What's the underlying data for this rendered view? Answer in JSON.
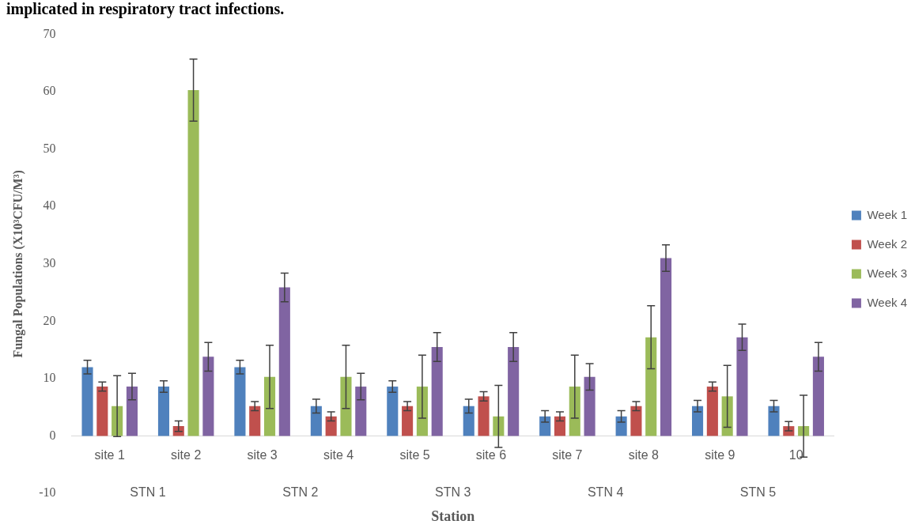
{
  "chart_data": {
    "type": "bar",
    "xlabel": "Station",
    "ylabel": "Fungal Populations (X10³CFU/M³)",
    "categories": [
      "site 1",
      "site 2",
      "site 3",
      "site 4",
      "site 5",
      "site 6",
      "site 7",
      "site 8",
      "site 9",
      "10"
    ],
    "series": [
      {
        "name": "Week 1",
        "color": "#4f81bd",
        "values": [
          12,
          8.6,
          12,
          5.2,
          8.6,
          5.2,
          3.4,
          3.4,
          5.2,
          5.2
        ],
        "errors": [
          1.2,
          1,
          1.2,
          1.2,
          1,
          1.2,
          1,
          1,
          1,
          1
        ]
      },
      {
        "name": "Week 2",
        "color": "#c0504d",
        "values": [
          8.6,
          1.7,
          5.2,
          3.4,
          5.2,
          6.9,
          3.4,
          5.2,
          8.6,
          1.7
        ],
        "errors": [
          0.8,
          0.9,
          0.8,
          0.8,
          0.8,
          0.8,
          0.8,
          0.8,
          0.8,
          0.8
        ]
      },
      {
        "name": "Week 3",
        "color": "#9bbb59",
        "values": [
          5.2,
          60.3,
          10.3,
          10.3,
          8.6,
          3.4,
          8.6,
          17.2,
          6.9,
          1.7
        ],
        "errors": [
          5.3,
          5.4,
          5.5,
          5.5,
          5.5,
          5.4,
          5.5,
          5.5,
          5.4,
          5.4
        ]
      },
      {
        "name": "Week 4",
        "color": "#8064a2",
        "values": [
          8.6,
          13.8,
          25.9,
          8.6,
          15.5,
          15.5,
          10.3,
          31,
          17.2,
          13.8
        ],
        "errors": [
          2.3,
          2.5,
          2.5,
          2.3,
          2.5,
          2.5,
          2.3,
          2.3,
          2.3,
          2.5
        ]
      }
    ],
    "ylim": [
      -10,
      70
    ],
    "yticks": [
      -10,
      0,
      10,
      20,
      30,
      40,
      50,
      60,
      70
    ],
    "grid": false,
    "legend": "right",
    "annotations": [
      "implicated in respiratory tract infections.",
      "STN 1",
      "STN 2",
      "STN 3",
      "STN 4",
      "STN 5"
    ]
  }
}
